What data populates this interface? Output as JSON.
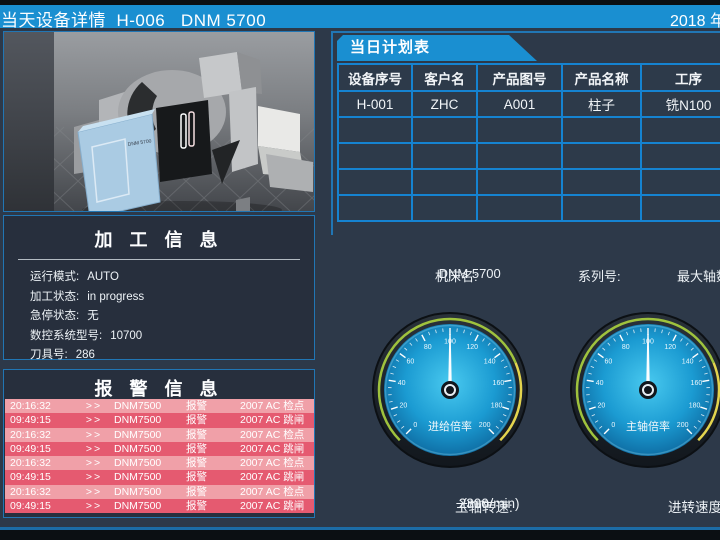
{
  "title_bar": {
    "title": "当天设备详情  H-006   DNM 5700",
    "date": "2018 年"
  },
  "machine_panel": {
    "model_label": "DNM 5700"
  },
  "plan_table": {
    "tab_label": "当日计划表",
    "headers": [
      "设备序号",
      "客户名",
      "产品图号",
      "产品名称",
      "工序"
    ],
    "rows": [
      [
        "H-001",
        "ZHC",
        "A001",
        "柱子",
        "铣N100"
      ],
      [
        "",
        "",
        "",
        "",
        ""
      ],
      [
        "",
        "",
        "",
        "",
        ""
      ],
      [
        "",
        "",
        "",
        "",
        ""
      ],
      [
        "",
        "",
        "",
        "",
        ""
      ]
    ]
  },
  "machine_info_row": {
    "machine_name_label": "机床名:",
    "machine_name_value": "DNM 5700",
    "serial_label": "系列号:",
    "serial_value": "",
    "max_axes_label": "最大轴数"
  },
  "processing_info": {
    "title": "加 工 信 息",
    "fields": [
      {
        "label": "运行模式:",
        "value": "AUTO"
      },
      {
        "label": "加工状态:",
        "value": "in progress"
      },
      {
        "label": "急停状态:",
        "value": "无"
      },
      {
        "label": "数控系统型号:",
        "value": "10700"
      },
      {
        "label": "刀具号:",
        "value": "286"
      }
    ]
  },
  "alarm_info": {
    "title": "报 警 信 息",
    "rows": [
      {
        "time": "20:16:32",
        "arrow": ">>",
        "device": "DNM7500",
        "type": "报警",
        "detail": "2007  AC 检点"
      },
      {
        "time": "09:49:15",
        "arrow": ">>",
        "device": "DNM7500",
        "type": "报警",
        "detail": "2007  AC 跳闸"
      },
      {
        "time": "20:16:32",
        "arrow": ">>",
        "device": "DNM7500",
        "type": "报警",
        "detail": "2007  AC 检点"
      },
      {
        "time": "09:49:15",
        "arrow": ">>",
        "device": "DNM7500",
        "type": "报警",
        "detail": "2007  AC 跳闸"
      },
      {
        "time": "20:16:32",
        "arrow": ">>",
        "device": "DNM7500",
        "type": "报警",
        "detail": "2007  AC 检点"
      },
      {
        "time": "09:49:15",
        "arrow": ">>",
        "device": "DNM7500",
        "type": "报警",
        "detail": "2007  AC 跳闸"
      },
      {
        "time": "20:16:32",
        "arrow": ">>",
        "device": "DNM7500",
        "type": "报警",
        "detail": "2007  AC 检点"
      },
      {
        "time": "09:49:15",
        "arrow": ">>",
        "device": "DNM7500",
        "type": "报警",
        "detail": "2007  AC 跳闸"
      }
    ]
  },
  "gauges": [
    {
      "title": "进给倍率",
      "min": 0,
      "max": 200,
      "value": 100,
      "major_step": 20,
      "minor_step": 5,
      "zones": [
        {
          "from": 0,
          "to": 150,
          "color": "#9fc23d"
        },
        {
          "from": 150,
          "to": 200,
          "color": "#e3d44e"
        }
      ]
    },
    {
      "title": "主轴倍率",
      "min": 0,
      "max": 200,
      "value": 100,
      "major_step": 20,
      "minor_step": 5,
      "zones": [
        {
          "from": 0,
          "to": 150,
          "color": "#9fc23d"
        },
        {
          "from": 150,
          "to": 200,
          "color": "#e3d44e"
        }
      ]
    }
  ],
  "bottom_row": {
    "spindle_label": "主轴转速:",
    "spindle_value": "2300",
    "spindle_unit": "(mm/min)",
    "feed_label": "进转速度"
  },
  "colors": {
    "header_blue": "#1a8fd1",
    "page_bg": "#2d3949",
    "panel_border": "#2176b4",
    "table_border": "#1583d1",
    "alarm_row_light": "#f0a0a8",
    "alarm_row_dark": "#e55a70",
    "gauge_face": "#1b9bd2",
    "gauge_zone_green": "#9fc23d",
    "gauge_zone_yellow": "#e3d44e"
  }
}
